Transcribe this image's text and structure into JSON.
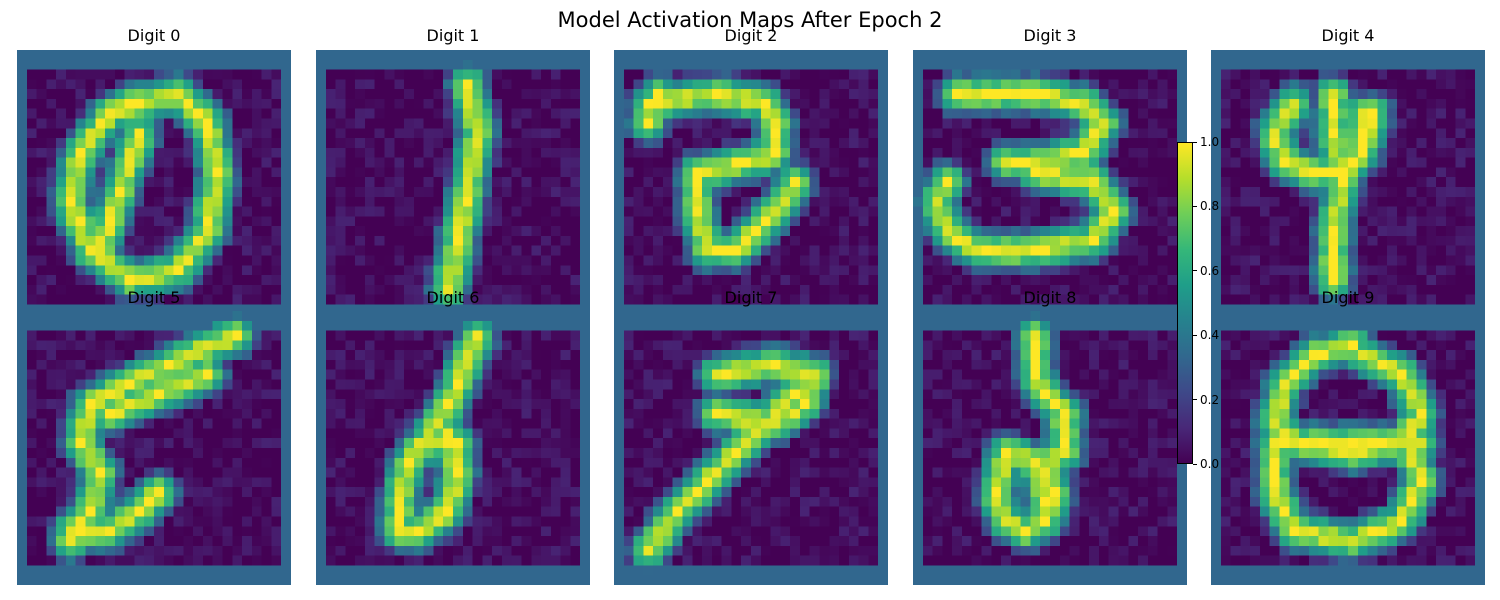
{
  "chart_data": {
    "type": "heatmap",
    "title": "Model Activation Maps After Epoch 2",
    "colormap": "viridis",
    "value_range": [
      0.0,
      1.0
    ],
    "grid": false,
    "grid_size": [
      28,
      28
    ],
    "layout": "2 rows x 5 columns",
    "panels": [
      {
        "title": "Digit 0"
      },
      {
        "title": "Digit 1"
      },
      {
        "title": "Digit 2"
      },
      {
        "title": "Digit 3"
      },
      {
        "title": "Digit 4"
      },
      {
        "title": "Digit 5"
      },
      {
        "title": "Digit 6"
      },
      {
        "title": "Digit 7"
      },
      {
        "title": "Digit 8"
      },
      {
        "title": "Digit 9"
      }
    ],
    "colorbar": {
      "ticks": [
        "0.0",
        "0.2",
        "0.4",
        "0.6",
        "0.8",
        "1.0"
      ]
    }
  }
}
